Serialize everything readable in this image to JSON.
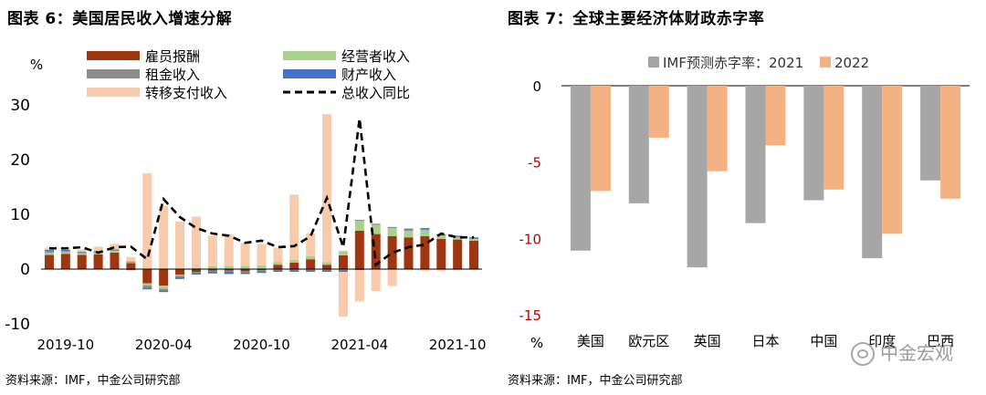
{
  "left": {
    "title": "图表 6：美国居民收入增速分解",
    "source": "资料来源：IMF，中金公司研究部",
    "chart_data": {
      "type": "bar",
      "stacked": true,
      "unit_label": "%",
      "ylim": [
        -10,
        30
      ],
      "yticks": [
        -10,
        0,
        10,
        20,
        30
      ],
      "x_ticks": [
        "2019-10",
        "2020-04",
        "2020-10",
        "2021-04",
        "2021-10"
      ],
      "categories": [
        "2019-09",
        "2019-10",
        "2019-11",
        "2019-12",
        "2020-01",
        "2020-02",
        "2020-03",
        "2020-04",
        "2020-05",
        "2020-06",
        "2020-07",
        "2020-08",
        "2020-09",
        "2020-10",
        "2020-11",
        "2020-12",
        "2021-01",
        "2021-02",
        "2021-03",
        "2021-04",
        "2021-05",
        "2021-06",
        "2021-07",
        "2021-08",
        "2021-09",
        "2021-10",
        "2021-11"
      ],
      "legend": [
        {
          "name": "雇员报酬",
          "color": "#9e3610"
        },
        {
          "name": "经营者收入",
          "color": "#a9d18e"
        },
        {
          "name": "租金收入",
          "color": "#8c8c8c"
        },
        {
          "name": "财产收入",
          "color": "#4472c4"
        },
        {
          "name": "转移支付收入",
          "color": "#f8cbad"
        },
        {
          "name": "总收入同比",
          "color": "#000000",
          "style": "dashed-line"
        }
      ],
      "series": [
        {
          "name": "雇员报酬",
          "values": [
            2.6,
            2.8,
            2.6,
            2.7,
            3.0,
            1.1,
            -2.6,
            -3.0,
            -1.0,
            -0.5,
            -0.3,
            -0.3,
            -0.4,
            -0.2,
            0.8,
            1.2,
            1.8,
            0.8,
            2.5,
            7.0,
            6.4,
            6.0,
            5.8,
            6.0,
            5.5,
            5.4,
            5.2
          ]
        },
        {
          "name": "经营者收入",
          "values": [
            0.4,
            0.3,
            0.3,
            0.3,
            0.3,
            0.1,
            -0.4,
            -0.6,
            -0.2,
            0.3,
            0.5,
            0.6,
            0.6,
            0.7,
            0.5,
            0.5,
            0.6,
            0.5,
            0.8,
            1.8,
            1.7,
            1.5,
            1.2,
            1.1,
            0.6,
            0.4,
            0.3
          ]
        },
        {
          "name": "租金收入",
          "values": [
            0.3,
            0.2,
            0.2,
            0.2,
            0.2,
            0.2,
            -0.4,
            -0.3,
            -0.3,
            -0.2,
            -0.2,
            -0.2,
            -0.2,
            -0.2,
            -0.2,
            -0.2,
            -0.2,
            -0.2,
            -0.2,
            0.2,
            0.2,
            0.2,
            0.2,
            0.2,
            0.1,
            0.1,
            0.1
          ]
        },
        {
          "name": "财产收入",
          "values": [
            0.2,
            0.2,
            0.1,
            0.1,
            0.1,
            -0.2,
            -0.3,
            -0.3,
            -0.3,
            -0.3,
            -0.3,
            -0.4,
            -0.3,
            -0.3,
            -0.3,
            -0.3,
            -0.3,
            -0.3,
            -0.3,
            -0.2,
            -0.1,
            0.0,
            0.2,
            0.2,
            0.2,
            0.2,
            0.2
          ]
        },
        {
          "name": "转移支付收入",
          "values": [
            0.3,
            0.5,
            0.4,
            0.8,
            1.0,
            0.8,
            17.5,
            11.5,
            8.7,
            9.3,
            5.6,
            5.7,
            4.2,
            3.9,
            2.6,
            11.9,
            4.1,
            27.0,
            -8.2,
            -5.7,
            -3.9,
            -3.1,
            -0.1,
            -0.3,
            -0.3,
            -0.2,
            -0.1
          ]
        },
        {
          "name": "总收入同比",
          "values": [
            3.8,
            3.8,
            4.0,
            3.0,
            4.0,
            4.1,
            1.8,
            12.8,
            9.5,
            7.5,
            6.5,
            6.1,
            4.8,
            5.2,
            4.0,
            4.2,
            6.0,
            13.0,
            4.0,
            27.5,
            0.8,
            3.0,
            4.0,
            4.5,
            6.5,
            5.8,
            5.8
          ]
        }
      ]
    }
  },
  "right": {
    "title": "图表 7：全球主要经济体财政赤字率",
    "source": "资料来源：IMF，中金公司研究部",
    "watermark": "中金宏观",
    "chart_data": {
      "type": "bar",
      "unit_label": "%",
      "ylim": [
        -15,
        0
      ],
      "yticks": [
        0,
        -5,
        -10,
        -15
      ],
      "categories": [
        "美国",
        "欧元区",
        "英国",
        "日本",
        "中国",
        "印度",
        "巴西"
      ],
      "series": [
        {
          "name": "IMF预测赤字率：2021",
          "color": "#a6a6a6",
          "values": [
            -10.8,
            -7.7,
            -11.9,
            -9.0,
            -7.5,
            -11.3,
            -6.2
          ]
        },
        {
          "name": "2022",
          "color": "#f4b183",
          "values": [
            -6.9,
            -3.4,
            -5.6,
            -3.9,
            -6.8,
            -9.7,
            -7.4
          ]
        }
      ]
    }
  }
}
